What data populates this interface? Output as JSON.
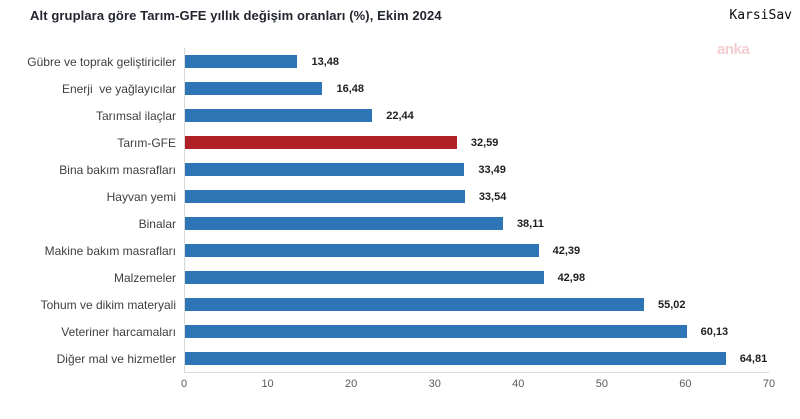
{
  "header": {
    "title": "Alt gruplara göre Tarım-GFE yıllık değişim oranları (%), Ekim 2024",
    "brand": "KarsiSav",
    "watermark": "anka"
  },
  "colors": {
    "bar": "#2e75b6",
    "highlight_bar": "#b02126",
    "axis": "#d9d9d9",
    "tick_label": "#595959",
    "category_label": "#3f3f3f",
    "value_label": "#1f1f1f",
    "title": "#22262e",
    "watermark": "#e9a6aa"
  },
  "chart_data": {
    "type": "bar",
    "orientation": "horizontal",
    "title": "Alt gruplara göre Tarım-GFE yıllık değişim oranları (%), Ekim 2024",
    "categories": [
      "Gübre ve toprak geliştiriciler",
      "Enerji  ve yağlayıcılar",
      "Tarımsal ilaçlar",
      "Tarım-GFE",
      "Bina bakım masrafları",
      "Hayvan yemi",
      "Binalar",
      "Makine bakım masrafları",
      "Malzemeler",
      "Tohum ve dikim materyali",
      "Veteriner harcamaları",
      "Diğer mal ve hizmetler"
    ],
    "values": [
      13.48,
      16.48,
      22.44,
      32.59,
      33.49,
      33.54,
      38.11,
      42.39,
      42.98,
      55.02,
      60.13,
      64.81
    ],
    "value_labels": [
      "13,48",
      "16,48",
      "22,44",
      "32,59",
      "33,49",
      "33,54",
      "38,11",
      "42,39",
      "42,98",
      "55,02",
      "60,13",
      "64,81"
    ],
    "highlight_category": "Tarım-GFE",
    "highlight_index": 3,
    "xlabel": "",
    "ylabel": "",
    "xlim": [
      0,
      70
    ],
    "x_ticks": [
      0,
      10,
      20,
      30,
      40,
      50,
      60,
      70
    ],
    "grid": false,
    "legend": false
  }
}
